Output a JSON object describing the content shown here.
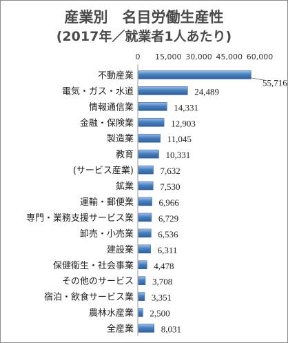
{
  "chart_data": {
    "type": "bar",
    "orientation": "horizontal",
    "title": "産業別　名目労働生産性",
    "subtitle": "(2017年／就業者1人あたり)",
    "xlim": [
      0,
      60000
    ],
    "xticks": [
      "0",
      "15,000",
      "30,000",
      "45,000",
      "60,000"
    ],
    "categories": [
      "不動産業",
      "電気・ガス・水道",
      "情報通信業",
      "金融・保険業",
      "製造業",
      "教育",
      "(サービス産業)",
      "鉱業",
      "運輸・郵便業",
      "専門・業務支援サービス業",
      "卸売・小売業",
      "建設業",
      "保健衛生・社会事業",
      "その他のサービス",
      "宿泊・飲食サービス業",
      "農林水産業",
      "全産業"
    ],
    "values": [
      55716,
      24489,
      14331,
      12903,
      11045,
      10331,
      7632,
      7530,
      6966,
      6729,
      6536,
      6311,
      4478,
      3708,
      3351,
      2500,
      8031
    ],
    "value_labels": [
      "55,716",
      "24,489",
      "14,331",
      "12,903",
      "11,045",
      "10,331",
      "7,632",
      "7,530",
      "6,966",
      "6,729",
      "6,536",
      "6,311",
      "4,478",
      "3,708",
      "3,351",
      "2,500",
      "8,031"
    ],
    "bar_color": "#4a80c0"
  }
}
